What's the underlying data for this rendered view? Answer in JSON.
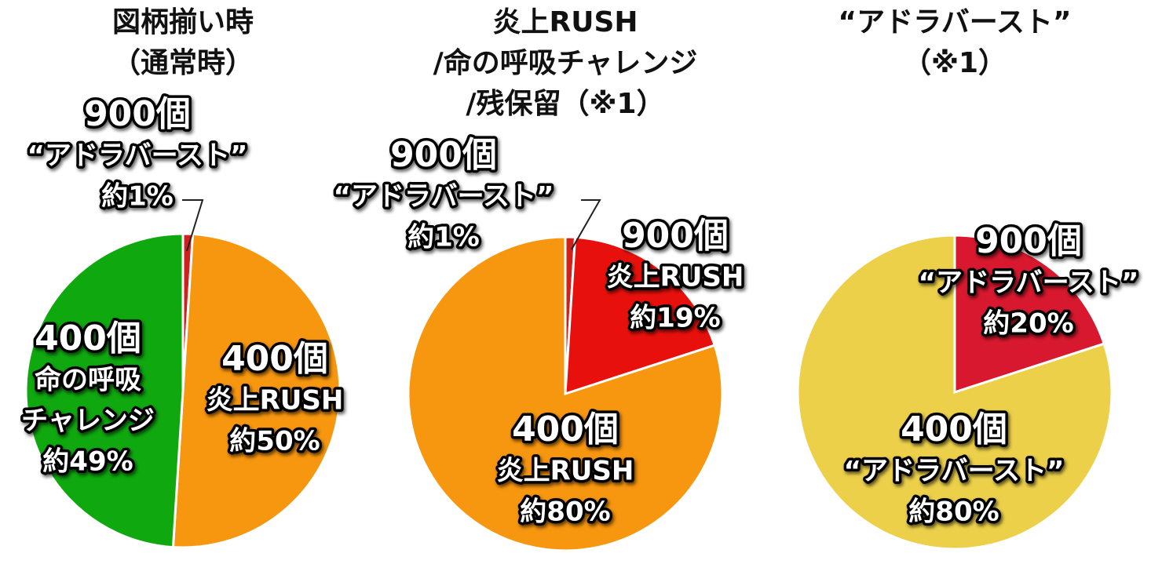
{
  "chart_data": [
    {
      "type": "pie",
      "title": [
        "図柄揃い時",
        "（通常時）"
      ],
      "prizes": [
        "900個",
        "400個",
        "400個"
      ],
      "categories": [
        [
          "“アドラバースト”"
        ],
        [
          "炎上RUSH"
        ],
        [
          "命の呼吸",
          "チャレンジ"
        ]
      ],
      "values": [
        1,
        50,
        49
      ],
      "value_labels": [
        "約1%",
        "約50%",
        "約49%"
      ],
      "colors": [
        "#d0201c",
        "#f7960f",
        "#0fa80f"
      ]
    },
    {
      "type": "pie",
      "title": [
        "炎上RUSH",
        "/命の呼吸チャレンジ",
        "/残保留（※1）"
      ],
      "prizes": [
        "900個",
        "900個",
        "400個"
      ],
      "categories": [
        [
          "“アドラバースト”"
        ],
        [
          "炎上RUSH"
        ],
        [
          "炎上RUSH"
        ]
      ],
      "values": [
        1,
        19,
        80
      ],
      "value_labels": [
        "約1%",
        "約19%",
        "約80%"
      ],
      "colors": [
        "#d0201c",
        "#e8100c",
        "#f7960f"
      ]
    },
    {
      "type": "pie",
      "title": [
        "“アドラバースト”",
        "（※1）"
      ],
      "prizes": [
        "900個",
        "400個"
      ],
      "categories": [
        [
          "“アドラバースト”"
        ],
        [
          "“アドラバースト”"
        ]
      ],
      "values": [
        20,
        80
      ],
      "value_labels": [
        "約20%",
        "約80%"
      ],
      "colors": [
        "#d8182e",
        "#ecd04a"
      ]
    }
  ]
}
